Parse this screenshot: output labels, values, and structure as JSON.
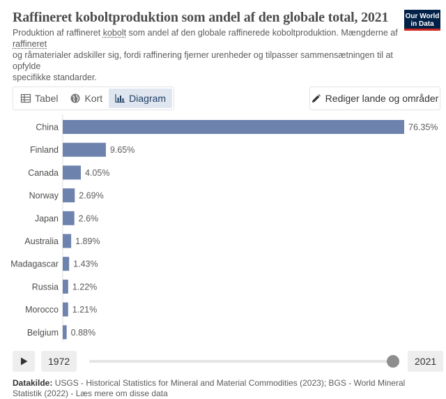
{
  "header": {
    "title": "Raffineret koboltproduktion som andel af den globale total, 2021",
    "subtitle_line1_pre": "Produktion af raffineret ",
    "subtitle_link1": "kobolt",
    "subtitle_line1_post": " som andel af den globale raffinerede koboltproduktion. Mængderne af",
    "subtitle_link2": "raffineret",
    "subtitle_line3": "og råmaterialer adskiller sig, fordi raffinering fjerner urenheder og tilpasser sammensætningen til at",
    "subtitle_line4": "opfylde",
    "subtitle_line5": "specifikke standarder.",
    "logo": "Our World in Data"
  },
  "tabs": [
    {
      "label": "Tabel",
      "icon": "table-icon"
    },
    {
      "label": "Kort",
      "icon": "globe-icon"
    },
    {
      "label": "Diagram",
      "icon": "bar-chart-icon",
      "active": true
    }
  ],
  "edit_button": {
    "label": "Rediger lande og områder",
    "icon": "pencil-icon"
  },
  "chart_data": {
    "type": "bar",
    "orientation": "horizontal",
    "categories": [
      "China",
      "Finland",
      "Canada",
      "Norway",
      "Japan",
      "Australia",
      "Madagascar",
      "Russia",
      "Morocco",
      "Belgium"
    ],
    "values": [
      76.35,
      9.65,
      4.05,
      2.69,
      2.6,
      1.89,
      1.43,
      1.22,
      1.21,
      0.88
    ],
    "value_labels": [
      "76.35%",
      "9.65%",
      "4.05%",
      "2.69%",
      "2.6%",
      "1.89%",
      "1.43%",
      "1.22%",
      "1.21%",
      "0.88%"
    ],
    "unit": "%",
    "bar_color": "#6d82ad",
    "xlim": [
      0,
      76.35
    ]
  },
  "timeline": {
    "start_year": "1972",
    "end_year": "2021",
    "position": 1.0
  },
  "source": {
    "label": "Datakilde:",
    "text": " USGS - Historical Statistics for Mineral and Material Commodities (2023); BGS - World Mineral Statistik (2022) - Læs mere om disse data"
  },
  "colors": {
    "accent": "#1d3d63",
    "bar": "#6d82ad",
    "logo_bg": "#002147",
    "logo_stripe": "#ce261e"
  }
}
